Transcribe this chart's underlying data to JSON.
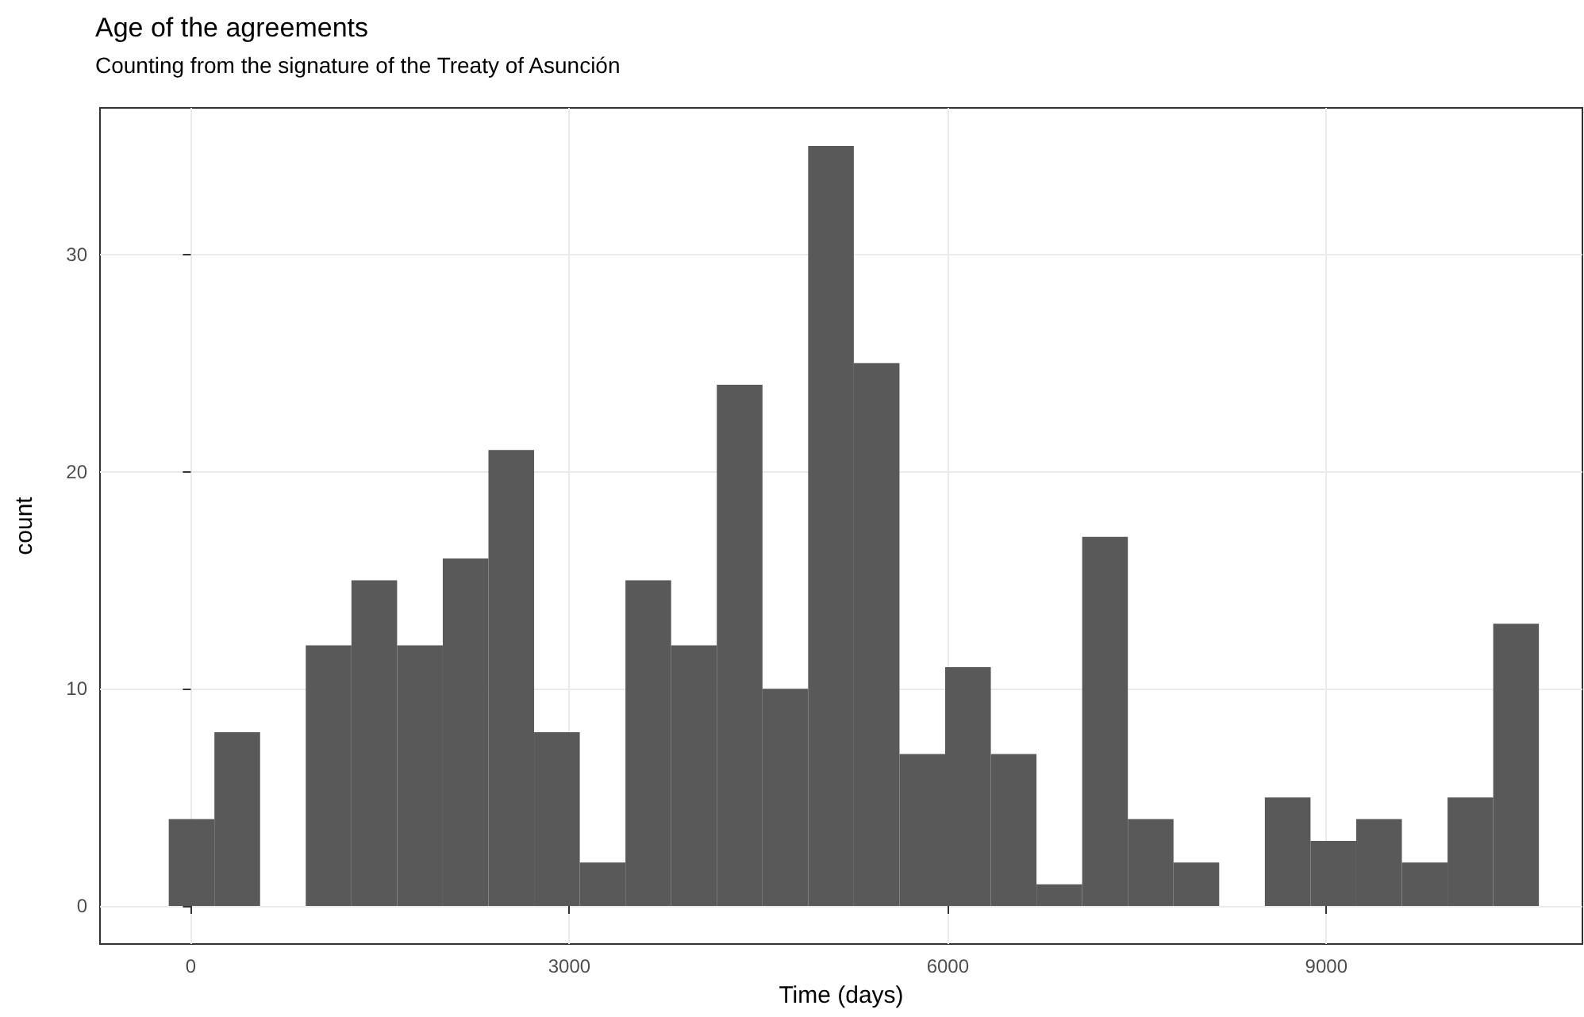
{
  "chart_data": {
    "type": "histogram",
    "title": "Age of the agreements",
    "subtitle": "Counting from the signature of the Treaty of Asunción",
    "xlabel": "Time (days)",
    "ylabel": "count",
    "bins": [
      -175,
      187,
      549,
      911,
      1273,
      1635,
      1997,
      2359,
      2721,
      3083,
      3445,
      3807,
      4169,
      4531,
      4893,
      5255,
      5617,
      5979,
      6341,
      6703,
      7065,
      7427,
      7789,
      8151,
      8513,
      8875,
      9237,
      9599,
      9961,
      10323,
      10685
    ],
    "values": [
      4,
      8,
      0,
      12,
      15,
      12,
      16,
      21,
      8,
      2,
      15,
      12,
      24,
      10,
      35,
      25,
      7,
      11,
      7,
      1,
      17,
      4,
      2,
      0,
      5,
      3,
      4,
      2,
      5,
      13
    ],
    "color": "#595959",
    "xlim": [
      -720,
      11030
    ],
    "xticks": [
      0,
      3000,
      6000,
      9000
    ],
    "ylim": [
      -1.75,
      36.75
    ],
    "yticks": [
      0,
      10,
      20,
      30
    ],
    "grid": true
  }
}
